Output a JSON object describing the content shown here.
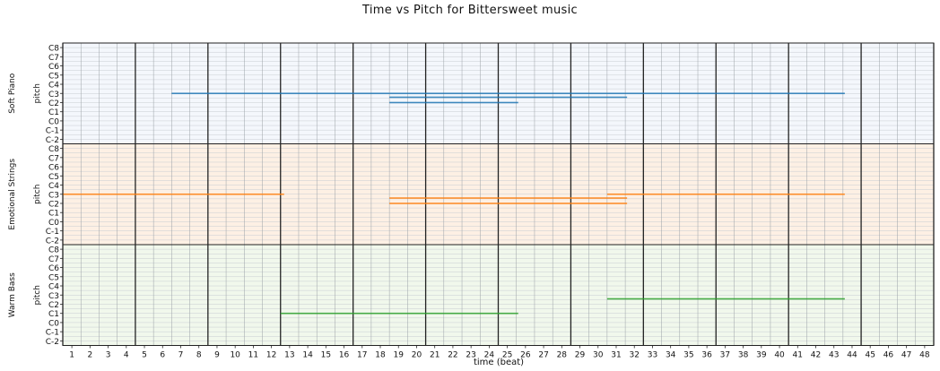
{
  "chart_data": {
    "type": "piano-roll",
    "title": "Time vs Pitch for Bittersweet music",
    "xlabel": "time (beat)",
    "ylabel": "pitch",
    "xlim": [
      0.5,
      48.5
    ],
    "x_ticks": [
      1,
      2,
      3,
      4,
      5,
      6,
      7,
      8,
      9,
      10,
      11,
      12,
      13,
      14,
      15,
      16,
      17,
      18,
      19,
      20,
      21,
      22,
      23,
      24,
      25,
      26,
      27,
      28,
      29,
      30,
      31,
      32,
      33,
      34,
      35,
      36,
      37,
      38,
      39,
      40,
      41,
      42,
      43,
      44,
      45,
      46,
      47,
      48
    ],
    "pitch_ticks": [
      "C-2",
      "C-1",
      "C0",
      "C1",
      "C2",
      "C3",
      "C4",
      "C5",
      "C6",
      "C7",
      "C8"
    ],
    "bar_lines_every_beats": 4,
    "grid": true,
    "tracks": [
      {
        "name": "Soft Piano",
        "background": "#f4f7fc",
        "color": "#1f77b4",
        "notes": [
          {
            "start": 6.5,
            "end": 18.5,
            "pitch": "C3"
          },
          {
            "start": 18.5,
            "end": 30.5,
            "pitch": "C3"
          },
          {
            "start": 18.5,
            "end": 31.6,
            "pitch": "G2"
          },
          {
            "start": 18.5,
            "end": 25.6,
            "pitch": "C2"
          },
          {
            "start": 30.5,
            "end": 36.5,
            "pitch": "C3"
          },
          {
            "start": 36.5,
            "end": 43.6,
            "pitch": "C3"
          }
        ]
      },
      {
        "name": "Emotional Strings",
        "background": "#fdf0e4",
        "color": "#ff7f0e",
        "notes": [
          {
            "start": 0.5,
            "end": 12.7,
            "pitch": "C3"
          },
          {
            "start": 18.5,
            "end": 31.6,
            "pitch": "G2"
          },
          {
            "start": 18.5,
            "end": 31.6,
            "pitch": "C2"
          },
          {
            "start": 30.5,
            "end": 43.6,
            "pitch": "C3"
          }
        ]
      },
      {
        "name": "Warm Bass",
        "background": "#f1f8ec",
        "color": "#2ca02c",
        "notes": [
          {
            "start": 12.5,
            "end": 25.6,
            "pitch": "C1"
          },
          {
            "start": 30.5,
            "end": 43.6,
            "pitch": "G2"
          }
        ]
      }
    ]
  }
}
